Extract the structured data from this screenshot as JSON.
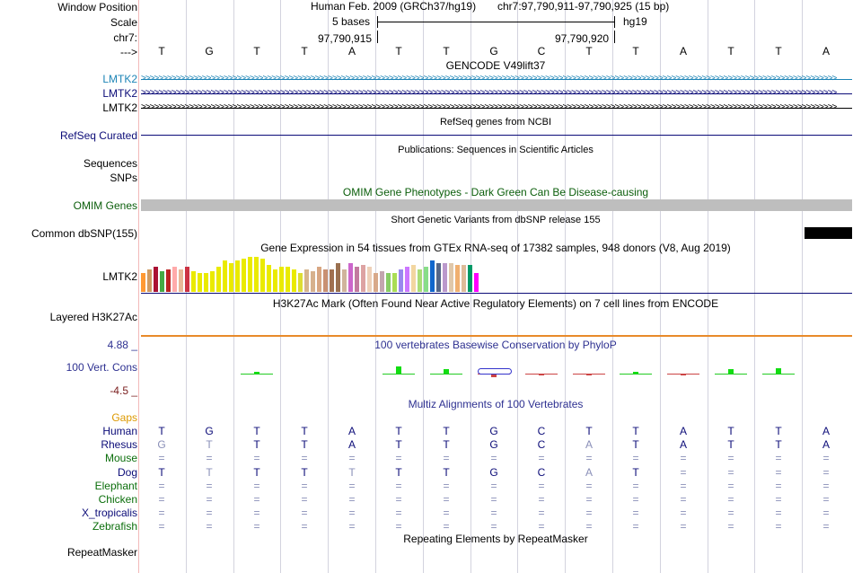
{
  "header": {
    "window_position_label": "Window Position",
    "scale_label": "Scale",
    "chrom_label": "chr7:",
    "arrow_label": "--->",
    "assembly": "Human Feb. 2009 (GRCh37/hg19)",
    "position": "chr7:97,790,911-97,790,925 (15 bp)",
    "scale_text": "5 bases",
    "scale_db": "hg19",
    "coord_left": "97,790,915",
    "coord_right": "97,790,920"
  },
  "sequence": [
    "T",
    "G",
    "T",
    "T",
    "A",
    "T",
    "T",
    "G",
    "C",
    "T",
    "T",
    "A",
    "T",
    "T",
    "A"
  ],
  "tracks": {
    "gencode": {
      "title": "GENCODE V49lift37",
      "genes": [
        "LMTK2",
        "LMTK2",
        "LMTK2"
      ],
      "color": "#1c84b6"
    },
    "refseq": {
      "title": "RefSeq genes from NCBI",
      "label": "RefSeq Curated",
      "color": "#0c0c78"
    },
    "publications": {
      "title": "Publications: Sequences in Scientific Articles",
      "label1": "Sequences",
      "label2": "SNPs"
    },
    "omim": {
      "title": "OMIM Gene Phenotypes - Dark Green Can Be Disease-causing",
      "label": "OMIM Genes",
      "color": "#0b5e0b",
      "bar_color": "#bebebe"
    },
    "dbsnp": {
      "title": "Short Genetic Variants from dbSNP release 155",
      "label": "Common dbSNP(155)"
    },
    "gtex": {
      "title": "Gene Expression in 54 tissues from GTEx RNA-seq of 17382 samples, 948 donors (V8, Aug 2019)",
      "label": "LMTK2",
      "expression": [
        9,
        11,
        12,
        10,
        11,
        12,
        11,
        12,
        10,
        9,
        9,
        10,
        12,
        15,
        14,
        15,
        16,
        17,
        17,
        16,
        13,
        11,
        12,
        12,
        11,
        9,
        11,
        10,
        12,
        11,
        11,
        14,
        11,
        14,
        12,
        13,
        12,
        9,
        10,
        9,
        9,
        11,
        12,
        13,
        11,
        12,
        15,
        14,
        14,
        14,
        13,
        13,
        13,
        9
      ],
      "colors": [
        "#ff9933",
        "#d09a61",
        "#aa1133",
        "#44aa44",
        "#bb2222",
        "#ffaaaa",
        "#e8b898",
        "#cc3344",
        "#eaea00",
        "#eaea00",
        "#eaea00",
        "#eaea00",
        "#eaea00",
        "#eaea00",
        "#eaea00",
        "#eaea00",
        "#eaea00",
        "#eaea00",
        "#eaea00",
        "#eaea00",
        "#eaea00",
        "#eaea00",
        "#eaea00",
        "#eaea00",
        "#eaea00",
        "#dddd33",
        "#d6b48c",
        "#d7b18d",
        "#d8a682",
        "#c99072",
        "#a07050",
        "#9a7050",
        "#d0b49c",
        "#cc66cc",
        "#c27aa0",
        "#dda3a3",
        "#eed0b8",
        "#d8a98a",
        "#c3a6b0",
        "#88cc66",
        "#aadd55",
        "#9988ee",
        "#cc77ff",
        "#f2d6a0",
        "#aadd77",
        "#88dd88",
        "#1166cc",
        "#556688",
        "#bb99cc",
        "#e0c8aa",
        "#f0b070",
        "#ddbb99",
        "#009966",
        "#ff00ff"
      ]
    },
    "h3k27ac": {
      "title": "H3K27Ac Mark (Often Found Near Active Regulatory Elements) on 7 cell lines from ENCODE",
      "label": "Layered H3K27Ac"
    },
    "phylop": {
      "title": "100 vertebrates Basewise Conservation by PhyloP",
      "label": "100 Vert. Cons",
      "max": "4.88 _",
      "min": "-4.5 _",
      "scores": [
        0,
        0,
        0.05,
        0,
        0,
        0.9,
        0.5,
        -0.4,
        -0.1,
        -0.1,
        0.2,
        -0.1,
        0.6,
        0.7,
        0
      ],
      "title_color": "#2e3191",
      "min_color": "#7b2020"
    },
    "multiz": {
      "title": "Multiz Alignments of 100 Vertebrates",
      "gaps_label": "Gaps",
      "species": [
        {
          "name": "Human",
          "color": "#0c0c78",
          "seq": [
            "T",
            "G",
            "T",
            "T",
            "A",
            "T",
            "T",
            "G",
            "C",
            "T",
            "T",
            "A",
            "T",
            "T",
            "A"
          ],
          "faded": [
            0,
            0,
            0,
            0,
            0,
            0,
            0,
            0,
            0,
            0,
            0,
            0,
            0,
            0,
            0
          ]
        },
        {
          "name": "Rhesus",
          "color": "#0c0c78",
          "seq": [
            "G",
            "T",
            "T",
            "T",
            "A",
            "T",
            "T",
            "G",
            "C",
            "A",
            "T",
            "A",
            "T",
            "T",
            "A"
          ],
          "faded": [
            1,
            1,
            0,
            0,
            0,
            0,
            0,
            0,
            0,
            1,
            0,
            0,
            0,
            0,
            0
          ]
        },
        {
          "name": "Mouse",
          "color": "#0b6e0b",
          "seq": [
            "=",
            "=",
            "=",
            "=",
            "=",
            "=",
            "=",
            "=",
            "=",
            "=",
            "=",
            "=",
            "=",
            "=",
            "="
          ],
          "faded": [
            1,
            1,
            1,
            1,
            1,
            1,
            1,
            1,
            1,
            1,
            1,
            1,
            1,
            1,
            1
          ]
        },
        {
          "name": "Dog",
          "color": "#0c0c78",
          "seq": [
            "T",
            "T",
            "T",
            "T",
            "T",
            "T",
            "T",
            "G",
            "C",
            "A",
            "T",
            "=",
            "=",
            "=",
            "="
          ],
          "faded": [
            0,
            1,
            0,
            0,
            1,
            0,
            0,
            0,
            0,
            1,
            0,
            1,
            1,
            1,
            1
          ]
        },
        {
          "name": "Elephant",
          "color": "#0b6e0b",
          "seq": [
            "=",
            "=",
            "=",
            "=",
            "=",
            "=",
            "=",
            "=",
            "=",
            "=",
            "=",
            "=",
            "=",
            "=",
            "="
          ],
          "faded": [
            1,
            1,
            1,
            1,
            1,
            1,
            1,
            1,
            1,
            1,
            1,
            1,
            1,
            1,
            1
          ]
        },
        {
          "name": "Chicken",
          "color": "#0b6e0b",
          "seq": [
            "=",
            "=",
            "=",
            "=",
            "=",
            "=",
            "=",
            "=",
            "=",
            "=",
            "=",
            "=",
            "=",
            "=",
            "="
          ],
          "faded": [
            1,
            1,
            1,
            1,
            1,
            1,
            1,
            1,
            1,
            1,
            1,
            1,
            1,
            1,
            1
          ]
        },
        {
          "name": "X_tropicalis",
          "color": "#0c0c78",
          "seq": [
            "=",
            "=",
            "=",
            "=",
            "=",
            "=",
            "=",
            "=",
            "=",
            "=",
            "=",
            "=",
            "=",
            "=",
            "="
          ],
          "faded": [
            1,
            1,
            1,
            1,
            1,
            1,
            1,
            1,
            1,
            1,
            1,
            1,
            1,
            1,
            1
          ]
        },
        {
          "name": "Zebrafish",
          "color": "#0b6e0b",
          "seq": [
            "=",
            "=",
            "=",
            "=",
            "=",
            "=",
            "=",
            "=",
            "=",
            "=",
            "=",
            "=",
            "=",
            "=",
            "="
          ],
          "faded": [
            1,
            1,
            1,
            1,
            1,
            1,
            1,
            1,
            1,
            1,
            1,
            1,
            1,
            1,
            1
          ]
        }
      ]
    },
    "repeatmasker": {
      "title": "Repeating Elements by RepeatMasker",
      "label": "RepeatMasker"
    }
  }
}
